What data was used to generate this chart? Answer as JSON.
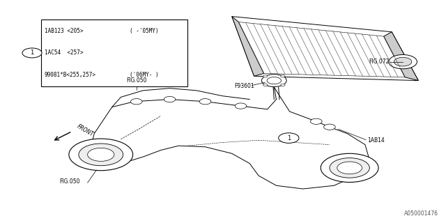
{
  "bg_color": "#ffffff",
  "line_color": "#000000",
  "fig_width": 6.4,
  "fig_height": 3.2,
  "dpi": 100,
  "watermark": "A050001476",
  "table_rows": [
    [
      "1AB123 <205>",
      "( -'05MY)"
    ],
    [
      "1AC54  <257>",
      ""
    ],
    [
      "99081*B<255,257>",
      "('06MY- )"
    ]
  ],
  "circle_label": "1"
}
